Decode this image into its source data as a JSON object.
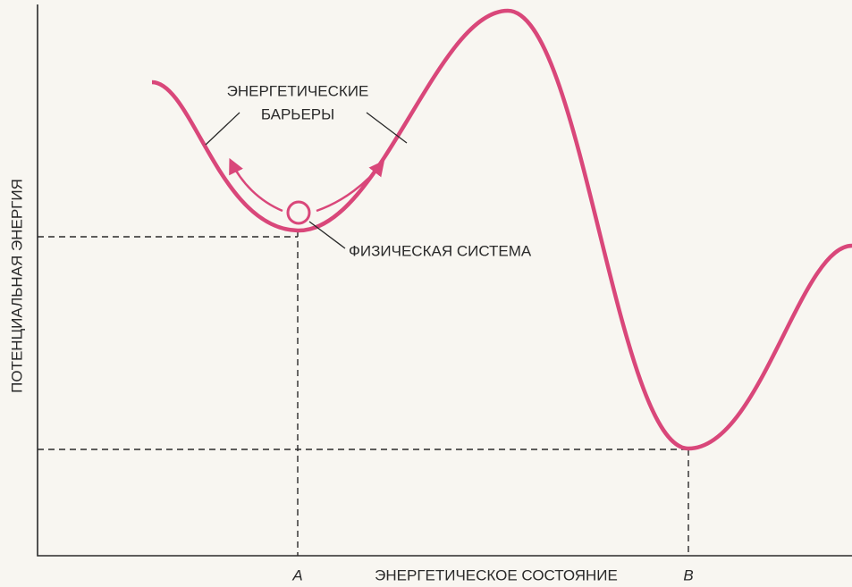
{
  "annotations": {
    "barriers": [
      "ЭНЕРГЕТИЧЕСКИЕ",
      "БАРЬЕРЫ"
    ],
    "system": "ФИЗИЧЕСКАЯ СИСТЕМА"
  },
  "axes": {
    "y_label": "ПОТЕНЦИАЛЬНАЯ ЭНЕРГИЯ",
    "x_label": "ЭНЕРГЕТИЧЕСКОЕ СОСТОЯНИЕ",
    "x_markers": [
      "A",
      "B"
    ]
  }
}
